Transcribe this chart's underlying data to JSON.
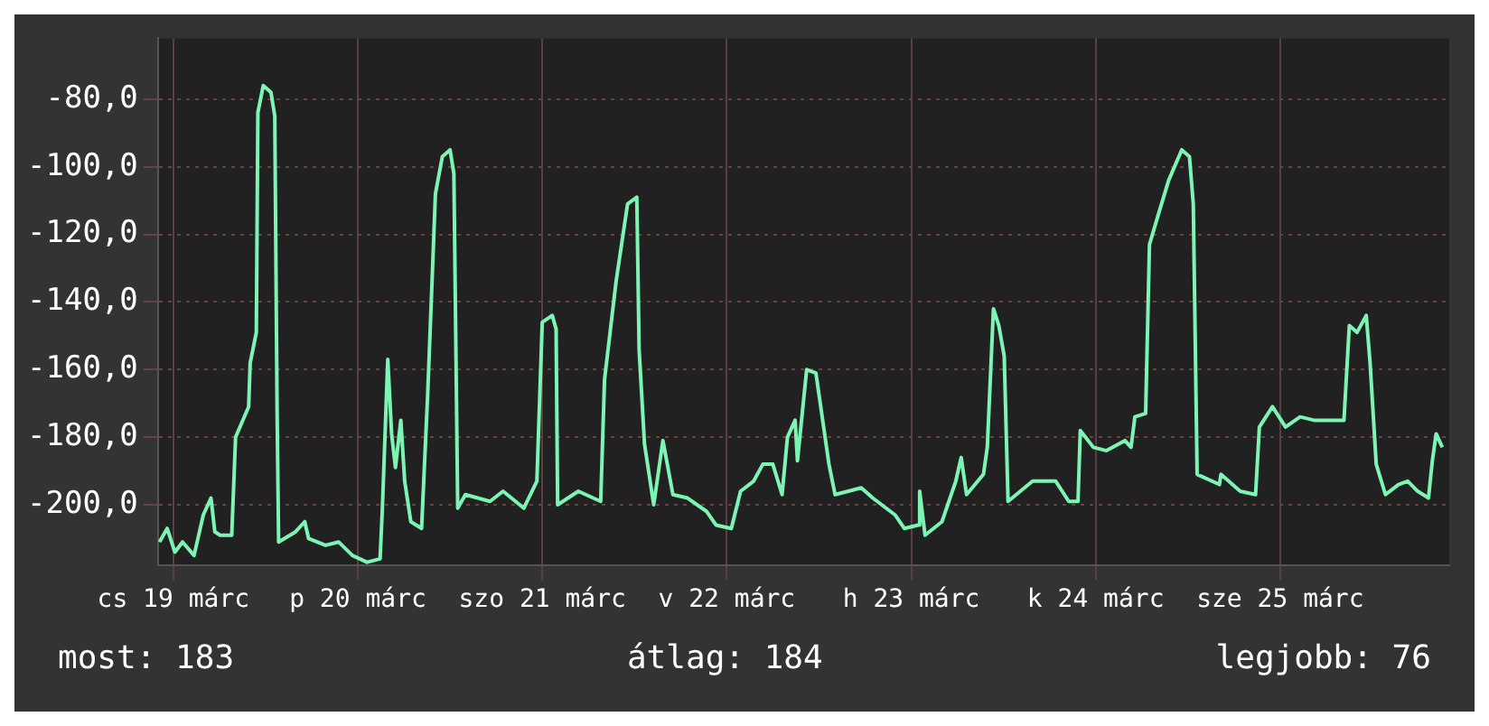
{
  "chart_data": {
    "type": "line",
    "x": [
      "--03-18T22:12",
      "--03-18T23:12",
      "--03-19T00:12",
      "--03-19T01:12",
      "--03-19T02:42",
      "--03-19T03:54",
      "--03-19T04:54",
      "--03-19T05:24",
      "--03-19T06:06",
      "--03-19T07:36",
      "--03-19T08:06",
      "--03-19T09:48",
      "--03-19T10:00",
      "--03-19T10:48",
      "--03-19T11:00",
      "--03-19T11:42",
      "--03-19T12:42",
      "--03-19T13:12",
      "--03-19T13:30",
      "--03-19T13:42",
      "--03-19T15:54",
      "--03-19T17:06",
      "--03-19T17:36",
      "--03-19T19:48",
      "--03-19T21:30",
      "--03-19T23:18",
      "--03-20T01:12",
      "--03-20T02:54",
      "--03-20T03:12",
      "--03-20T03:54",
      "--03-20T04:24",
      "--03-20T04:54",
      "--03-20T05:36",
      "--03-20T06:06",
      "--03-20T06:54",
      "--03-20T08:18",
      "--03-20T09:06",
      "--03-20T10:06",
      "--03-20T11:00",
      "--03-20T12:00",
      "--03-20T12:30",
      "--03-20T13:00",
      "--03-20T14:00",
      "--03-20T17:12",
      "--03-20T18:54",
      "--03-20T21:36",
      "--03-20T23:18",
      "--03-21T00:00",
      "--03-21T01:18",
      "--03-21T01:48",
      "--03-21T02:00",
      "--03-21T04:42",
      "--03-21T07:36",
      "--03-21T08:06",
      "--03-21T09:36",
      "--03-21T11:06",
      "--03-21T12:18",
      "--03-21T12:36",
      "--03-21T13:18",
      "--03-21T14:30",
      "--03-21T15:42",
      "--03-21T17:00",
      "--03-21T18:54",
      "--03-21T21:24",
      "--03-21T22:36",
      "--03-22T00:36",
      "--03-22T01:48",
      "--03-22T03:30",
      "--03-22T04:42",
      "--03-22T06:00",
      "--03-22T07:12",
      "--03-22T07:54",
      "--03-22T08:54",
      "--03-22T09:12",
      "--03-22T10:24",
      "--03-22T11:36",
      "--03-22T13:18",
      "--03-22T14:06",
      "--03-22T17:30",
      "--03-22T19:00",
      "--03-22T21:54",
      "--03-22T23:06",
      "--03-23T00:54",
      "--03-23T01:06",
      "--03-23T01:48",
      "--03-23T04:00",
      "--03-23T05:48",
      "--03-23T06:30",
      "--03-23T07:12",
      "--03-23T09:24",
      "--03-23T09:54",
      "--03-23T10:42",
      "--03-23T11:24",
      "--03-23T12:06",
      "--03-23T12:36",
      "--03-23T15:48",
      "--03-23T18:48",
      "--03-23T20:30",
      "--03-23T21:42",
      "--03-23T22:00",
      "--03-23T23:42",
      "--03-24T01:24",
      "--03-24T03:48",
      "--03-24T04:36",
      "--03-24T05:06",
      "--03-24T06:30",
      "--03-24T07:00",
      "--03-24T08:18",
      "--03-24T09:30",
      "--03-24T11:12",
      "--03-24T12:12",
      "--03-24T12:42",
      "--03-24T13:12",
      "--03-24T16:06",
      "--03-24T16:18",
      "--03-24T18:48",
      "--03-24T20:48",
      "--03-24T21:18",
      "--03-24T23:00",
      "--03-25T00:42",
      "--03-25T02:36",
      "--03-25T04:24",
      "--03-25T06:48",
      "--03-25T08:18",
      "--03-25T09:00",
      "--03-25T10:00",
      "--03-25T11:12",
      "--03-25T11:42",
      "--03-25T12:30",
      "--03-25T13:42",
      "--03-25T15:24",
      "--03-25T16:36",
      "--03-25T17:54",
      "--03-25T19:18",
      "--03-25T19:48",
      "--03-25T20:18",
      "--03-25T21:06"
    ],
    "series": [
      {
        "color": "#7cf4b4",
        "values": [
          -211,
          -207,
          -214,
          -211,
          -215,
          -203,
          -198,
          -208,
          -209,
          -209,
          -180,
          -171,
          -158,
          -149,
          -84,
          -76,
          -78,
          -85,
          -172,
          -211,
          -208,
          -205,
          -210,
          -212,
          -211,
          -215,
          -217,
          -216,
          -201,
          -157,
          -179,
          -189,
          -175,
          -193,
          -205,
          -207,
          -167,
          -108,
          -97,
          -95,
          -102,
          -201,
          -197,
          -199,
          -196,
          -201,
          -193,
          -146,
          -144,
          -148,
          -200,
          -196,
          -199,
          -163,
          -134,
          -111,
          -109,
          -154,
          -182,
          -200,
          -181,
          -197,
          -198,
          -202,
          -206,
          -207,
          -196,
          -193,
          -188,
          -188,
          -197,
          -180,
          -175,
          -187,
          -160,
          -161,
          -188,
          -197,
          -195,
          -198,
          -203,
          -207,
          -206,
          -196,
          -209,
          -205,
          -193,
          -186,
          -197,
          -191,
          -183,
          -142,
          -147,
          -156,
          -199,
          -193,
          -193,
          -199,
          -199,
          -178,
          -183,
          -184,
          -181,
          -183,
          -174,
          -173,
          -123,
          -113,
          -104,
          -95,
          -97,
          -111,
          -191,
          -194,
          -191,
          -196,
          -197,
          -177,
          -171,
          -177,
          -174,
          -175,
          -175,
          -175,
          -147,
          -149,
          -144,
          -158,
          -188,
          -197,
          -194,
          -193,
          -196,
          -198,
          -187,
          -179,
          -183
        ]
      }
    ],
    "xlim": [
      "--03-18T22:00",
      "--03-25T22:00"
    ],
    "xticks": [
      {
        "value": "--03-19",
        "label": "cs 19 márc"
      },
      {
        "value": "--03-20",
        "label": "p 20 márc"
      },
      {
        "value": "--03-21",
        "label": "szo 21 márc"
      },
      {
        "value": "--03-22",
        "label": "v 22 márc"
      },
      {
        "value": "--03-23",
        "label": "h 23 márc"
      },
      {
        "value": "--03-24",
        "label": "k 24 márc"
      },
      {
        "value": "--03-25",
        "label": "sze 25 márc"
      }
    ],
    "ylim": [
      -218,
      -62
    ],
    "yticks": [
      {
        "value": -200,
        "label": "-200,0"
      },
      {
        "value": -180,
        "label": "-180,0"
      },
      {
        "value": -160,
        "label": "-160,0"
      },
      {
        "value": -140,
        "label": "-140,0"
      },
      {
        "value": -120,
        "label": "-120,0"
      },
      {
        "value": -100,
        "label": "-100,0"
      },
      {
        "value": -80,
        "label": "-80,0"
      }
    ],
    "grid": true,
    "annotations": [
      "most: 183",
      "átlag: 184",
      "legjobb: 76"
    ]
  }
}
